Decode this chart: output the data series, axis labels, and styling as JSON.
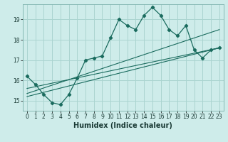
{
  "xlabel": "Humidex (Indice chaleur)",
  "bg_color": "#ceecea",
  "grid_color": "#aad4d0",
  "line_color": "#1a6b5e",
  "xlim": [
    -0.5,
    23.5
  ],
  "ylim": [
    14.5,
    19.75
  ],
  "yticks": [
    15,
    16,
    17,
    18,
    19
  ],
  "xticks": [
    0,
    1,
    2,
    3,
    4,
    5,
    6,
    7,
    8,
    9,
    10,
    11,
    12,
    13,
    14,
    15,
    16,
    17,
    18,
    19,
    20,
    21,
    22,
    23
  ],
  "series1_x": [
    0,
    1,
    2,
    3,
    4,
    5,
    6,
    7,
    8,
    9,
    10,
    11,
    12,
    13,
    14,
    15,
    16,
    17,
    18,
    19,
    20,
    21,
    22,
    23
  ],
  "series1_y": [
    16.2,
    15.8,
    15.3,
    14.9,
    14.8,
    15.3,
    16.1,
    17.0,
    17.1,
    17.2,
    18.1,
    19.0,
    18.7,
    18.5,
    19.2,
    19.6,
    19.2,
    18.5,
    18.2,
    18.7,
    17.5,
    17.1,
    17.5,
    17.6
  ],
  "series2_x": [
    0,
    23
  ],
  "series2_y": [
    15.6,
    17.6
  ],
  "series3_x": [
    0,
    23
  ],
  "series3_y": [
    15.2,
    17.6
  ],
  "series4_x": [
    0,
    23
  ],
  "series4_y": [
    15.35,
    18.5
  ]
}
